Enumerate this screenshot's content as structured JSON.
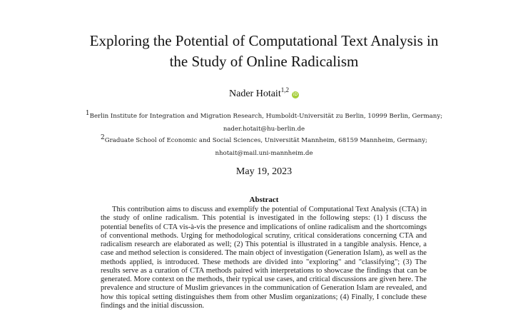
{
  "paper": {
    "title_line1": "Exploring the Potential of Computational Text Analysis in",
    "title_line2": "the Study of Online Radicalism",
    "author": {
      "name": "Nader Hotait",
      "affiliation_marks": "1,2",
      "orcid_icon": "orcid-icon"
    },
    "affiliations": [
      {
        "mark": "1",
        "text": "Berlin Institute for Integration and Migration Research, Humboldt-Universität zu Berlin, 10999 Berlin, Germany;",
        "email": "nader.hotait@hu-berlin.de"
      },
      {
        "mark": "2",
        "text": "Graduate School of Economic and Social Sciences, Universität Mannheim, 68159 Mannheim, Germany;",
        "email": "nhotait@mail.uni-mannheim.de"
      }
    ],
    "date": "May 19, 2023",
    "abstract": {
      "heading": "Abstract",
      "body": "This contribution aims to discuss and exemplify the potential of Computational Text Analysis (CTA) in the study of online radicalism. This potential is investigated in the following steps: (1) I discuss the potential benefits of CTA vis-à-vis the presence and implications of online radicalism and the shortcomings of conventional methods. Urging for methodological scrutiny, critical considerations concerning CTA and radicalism research are elaborated as well; (2) This potential is illustrated in a tangible analysis. Hence, a case and method selection is considered. The main object of investigation (Generation Islam), as well as the methods applied, is introduced. These methods are divided into \"exploring\" and \"classifying\"; (3) The results serve as a curation of CTA methods paired with interpretations to showcase the findings that can be generated. More context on the methods, their typical use cases, and critical discussions are given here. The prevalence and structure of Muslim grievances in the communication of Generation Islam are revealed, and how this topical setting distinguishes them from other Muslim organizations; (4) Finally, I conclude these findings and the initial discussion."
    }
  },
  "colors": {
    "orcid": "#a6ce39",
    "text": "#1a1a1a"
  }
}
